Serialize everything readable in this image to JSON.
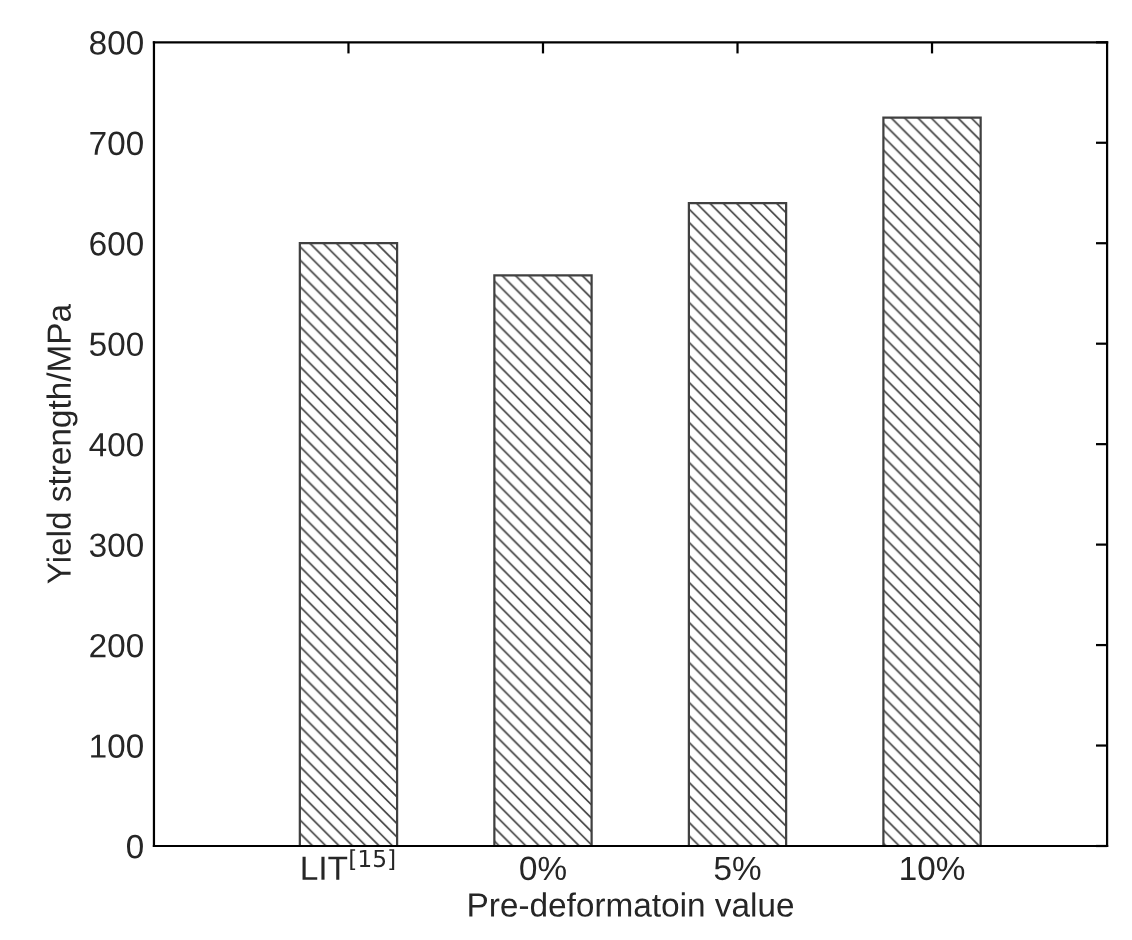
{
  "chart_data": {
    "type": "bar",
    "xlabel": "Pre-deformatoin value",
    "ylabel": "Yield strength/MPa",
    "categories": [
      "LIT$^{[15]}$",
      "0%",
      "5%",
      "10%"
    ],
    "values": [
      600,
      568,
      640,
      725
    ],
    "color": "#404040",
    "ylim": [
      0,
      800
    ],
    "yticks": [
      0,
      100,
      200,
      300,
      400,
      500,
      600,
      700,
      800
    ],
    "grid": false
  }
}
